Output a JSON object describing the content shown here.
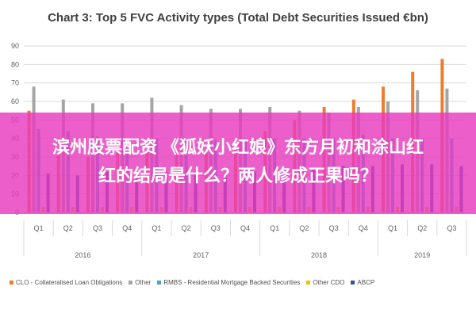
{
  "chart_data": {
    "type": "bar",
    "title": "Chart 3: Top 5 FVC Activity types (Total Debt Securities Issued €bn)",
    "xlabel": "",
    "ylabel": "",
    "ylim": [
      0,
      90
    ],
    "yticks": [
      0,
      10,
      20,
      30,
      40,
      50,
      60,
      70,
      80,
      90
    ],
    "grid": true,
    "legend_position": "bottom",
    "categories": [
      "Q1",
      "Q2",
      "Q3",
      "Q4",
      "Q1",
      "Q2",
      "Q3",
      "Q4",
      "Q1",
      "Q2",
      "Q3",
      "Q4",
      "Q1",
      "Q2",
      "Q3"
    ],
    "years": [
      {
        "label": "2016",
        "quarters": 4
      },
      {
        "label": "2017",
        "quarters": 4
      },
      {
        "label": "2018",
        "quarters": 4
      },
      {
        "label": "2019",
        "quarters": 3
      }
    ],
    "series": [
      {
        "name": "CLO - Collateralised Loan Obligations",
        "color": "#ed7d31",
        "values": [
          55,
          31,
          30,
          32,
          33,
          34,
          33,
          35,
          44,
          50,
          57,
          61,
          68,
          76,
          83
        ]
      },
      {
        "name": "Other",
        "color": "#a5a5a5",
        "values": [
          68,
          61,
          59,
          59,
          62,
          58,
          56,
          56,
          57,
          55,
          54,
          57,
          60,
          66,
          67
        ]
      },
      {
        "name": "RMBS - Residential Mortgage Backed Securities",
        "color": "#4a9fd4",
        "values": [
          45,
          44,
          41,
          40,
          40,
          40,
          39,
          39,
          40,
          40,
          40,
          42,
          40,
          40,
          40
        ]
      },
      {
        "name": "Other CDO",
        "color": "#f2c100",
        "values": [
          3,
          3,
          3,
          3,
          3,
          3,
          3,
          3,
          3,
          3,
          3,
          3,
          3,
          3,
          3
        ]
      },
      {
        "name": "ABCP",
        "color": "#2f4f9f",
        "values": [
          21,
          20,
          22,
          22,
          22,
          22,
          21,
          22,
          23,
          24,
          25,
          25,
          26,
          26,
          25
        ]
      }
    ]
  },
  "overlay": {
    "line1": "滨州股票配资 《狐妖小红娘》东方月初和涂山红",
    "line2": "红的结局是什么？两人修成正果吗？",
    "color": "#e83cbe"
  }
}
